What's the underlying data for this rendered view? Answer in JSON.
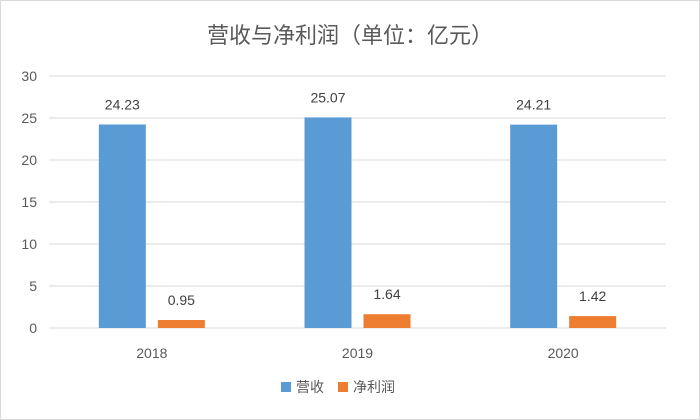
{
  "chart_data": {
    "type": "bar",
    "title": "营收与净利润（单位：亿元）",
    "categories": [
      "2018",
      "2019",
      "2020"
    ],
    "series": [
      {
        "name": "营收",
        "values": [
          24.23,
          25.07,
          24.21
        ],
        "labels": [
          "24.23",
          "25.07",
          "24.21"
        ],
        "color": "#5b9bd5"
      },
      {
        "name": "净利润",
        "values": [
          0.95,
          1.64,
          1.42
        ],
        "labels": [
          "0.95",
          "1.64",
          "1.42"
        ],
        "color": "#ed7d31"
      }
    ],
    "ylim": [
      0,
      30
    ],
    "yticks": [
      "0",
      "5",
      "10",
      "15",
      "20",
      "25",
      "30"
    ],
    "grid": true,
    "legend_position": "bottom"
  }
}
